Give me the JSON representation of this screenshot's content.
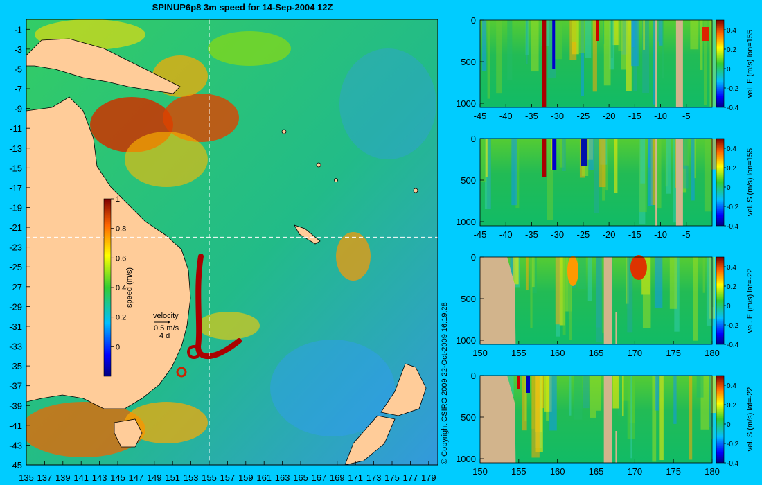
{
  "title": "SPINUP6p8 3m speed for 14-Sep-2004 12Z",
  "copyright": "© Copyright CSIRO 2009   22-Oct-2009 16:19:28",
  "colors": {
    "background": "#00ccff",
    "land": "#ffcc99",
    "land_mask": "#d2b48c",
    "ocean_mid": "#33cc66"
  },
  "chart_data": [
    {
      "type": "heatmap",
      "name": "map",
      "title": "SPINUP6p8 3m speed for 14-Sep-2004 12Z",
      "xlim": [
        135,
        180
      ],
      "ylim": [
        -45,
        0
      ],
      "xticks": [
        "135",
        "137",
        "139",
        "141",
        "143",
        "145",
        "147",
        "149",
        "151",
        "153",
        "155",
        "157",
        "159",
        "161",
        "163",
        "165",
        "167",
        "169",
        "171",
        "173",
        "175",
        "177",
        "179"
      ],
      "yticks": [
        "-1",
        "-3",
        "-5",
        "-7",
        "-9",
        "-11",
        "-13",
        "-15",
        "-17",
        "-19",
        "-21",
        "-23",
        "-25",
        "-27",
        "-29",
        "-31",
        "-33",
        "-35",
        "-37",
        "-39",
        "-41",
        "-43",
        "-45"
      ],
      "section_lon": 155,
      "section_lat": -22,
      "colorbar": {
        "label": "speed (m/s)",
        "range": [
          -0.2,
          1
        ],
        "ticks": [
          "0",
          "0.2",
          "0.4",
          "0.6",
          "0.8",
          "1"
        ]
      },
      "velocity_key": {
        "label": "velocity",
        "speed": "0.5 m/s",
        "duration": "4 d"
      }
    },
    {
      "type": "heatmap",
      "name": "section-1",
      "xlim": [
        -45,
        0
      ],
      "ylim": [
        1050,
        0
      ],
      "xticks": [
        "-45",
        "-40",
        "-35",
        "-30",
        "-25",
        "-20",
        "-15",
        "-10",
        "-5"
      ],
      "yticks": [
        "0",
        "500",
        "1000"
      ],
      "colorbar": {
        "label": "vel. E (m/s) lon=155",
        "range": [
          -0.4,
          0.5
        ],
        "ticks": [
          "0.4",
          "0.2",
          "0",
          "-0.2",
          "-0.4"
        ]
      }
    },
    {
      "type": "heatmap",
      "name": "section-2",
      "xlim": [
        -45,
        0
      ],
      "ylim": [
        1050,
        0
      ],
      "xticks": [
        "-45",
        "-40",
        "-35",
        "-30",
        "-25",
        "-20",
        "-15",
        "-10",
        "-5"
      ],
      "yticks": [
        "0",
        "500",
        "1000"
      ],
      "colorbar": {
        "label": "vel. S (m/s) lon=155",
        "range": [
          -0.4,
          0.5
        ],
        "ticks": [
          "0.4",
          "0.2",
          "0",
          "-0.2",
          "-0.4"
        ]
      }
    },
    {
      "type": "heatmap",
      "name": "section-3",
      "xlim": [
        150,
        180
      ],
      "ylim": [
        1050,
        0
      ],
      "xticks": [
        "150",
        "155",
        "160",
        "165",
        "170",
        "175",
        "180"
      ],
      "yticks": [
        "0",
        "500",
        "1000"
      ],
      "colorbar": {
        "label": "vel. E (m/s) lat=-22",
        "range": [
          -0.4,
          0.5
        ],
        "ticks": [
          "0.4",
          "0.2",
          "0",
          "-0.2",
          "-0.4"
        ]
      }
    },
    {
      "type": "heatmap",
      "name": "section-4",
      "xlim": [
        150,
        180
      ],
      "ylim": [
        1050,
        0
      ],
      "xticks": [
        "150",
        "155",
        "160",
        "165",
        "170",
        "175",
        "180"
      ],
      "yticks": [
        "0",
        "500",
        "1000"
      ],
      "colorbar": {
        "label": "vel. S (m/s) lat=-22",
        "range": [
          -0.4,
          0.5
        ],
        "ticks": [
          "0.4",
          "0.2",
          "0",
          "-0.2",
          "-0.4"
        ]
      }
    }
  ]
}
